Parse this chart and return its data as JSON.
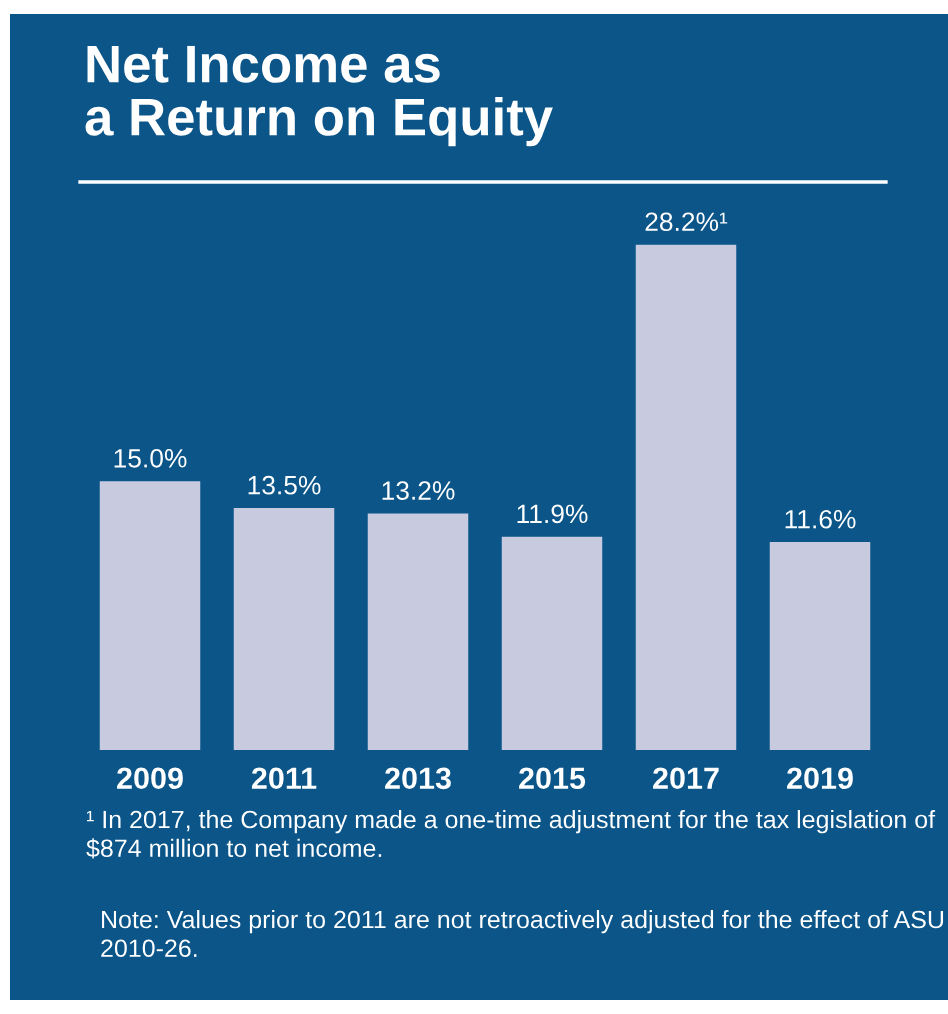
{
  "chart_data": {
    "type": "bar",
    "title": "Net Income as\na Return on Equity",
    "categories": [
      "2009",
      "2011",
      "2013",
      "2015",
      "2017",
      "2019"
    ],
    "values": [
      15.0,
      13.5,
      13.2,
      11.9,
      28.2,
      11.6
    ],
    "value_labels": [
      "15.0%",
      "13.5%",
      "13.2%",
      "11.9%",
      "28.2%¹",
      "11.6%"
    ],
    "color": "#c8cbe0",
    "annotations": [
      "¹ In 2017, the Company made a one-time adjustment for the tax legislation of $874 million to net income.",
      "Note: Values prior to 2011 are not retroactively adjusted for the effect of ASU 2010-26."
    ]
  }
}
